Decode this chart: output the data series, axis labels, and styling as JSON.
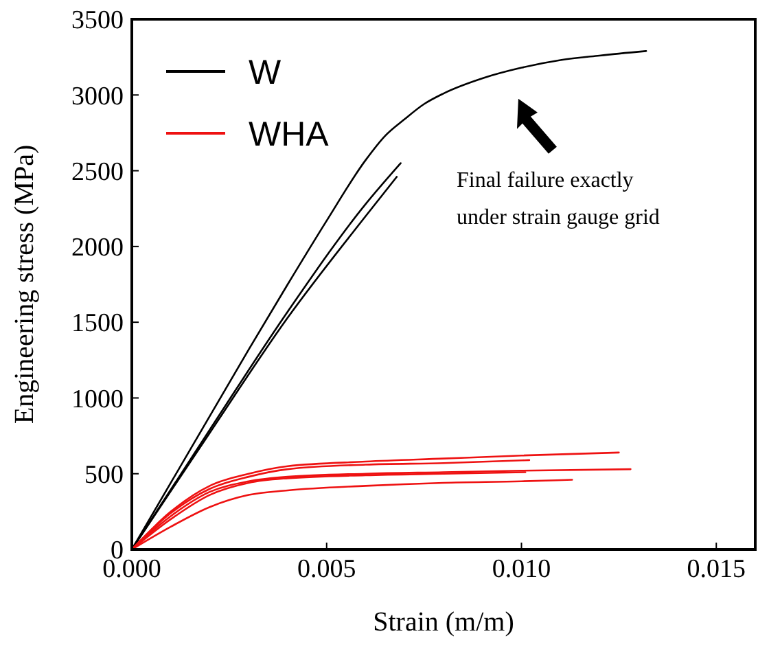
{
  "chart_data": {
    "type": "line",
    "xlabel": "Strain (m/m)",
    "ylabel": "Engineering stress (MPa)",
    "xlim": [
      0,
      0.016
    ],
    "ylim": [
      0,
      3500
    ],
    "xticks": [
      {
        "value": 0,
        "label": "0.000"
      },
      {
        "value": 0.005,
        "label": "0.005"
      },
      {
        "value": 0.01,
        "label": "0.010"
      },
      {
        "value": 0.015,
        "label": "0.015"
      }
    ],
    "yticks": [
      0,
      500,
      1000,
      1500,
      2000,
      2500,
      3000,
      3500
    ],
    "grid": false,
    "legend": "top left",
    "marker": "none",
    "line_style": "solid",
    "annotations": [
      "Final failure exactly under strain gauge grid"
    ],
    "series": [
      {
        "name": "W",
        "color": "#000000",
        "x": [
          0,
          0.001,
          0.002,
          0.003,
          0.004,
          0.005,
          0.006,
          0.0065,
          0.007,
          0.0075,
          0.008,
          0.009,
          0.01,
          0.011,
          0.012,
          0.0132
        ],
        "values": [
          0,
          440,
          880,
          1320,
          1750,
          2170,
          2570,
          2730,
          2840,
          2940,
          3010,
          3110,
          3180,
          3230,
          3260,
          3290
        ]
      },
      {
        "color": "#000000",
        "x": [
          0,
          0.002,
          0.004,
          0.006,
          0.0069
        ],
        "values": [
          0,
          790,
          1570,
          2280,
          2550
        ]
      },
      {
        "color": "#000000",
        "x": [
          0,
          0.002,
          0.004,
          0.006,
          0.0068
        ],
        "values": [
          0,
          770,
          1530,
          2200,
          2460
        ]
      },
      {
        "name": "WHA",
        "color": "#ee1111",
        "x": [
          0,
          0.001,
          0.002,
          0.003,
          0.004,
          0.006,
          0.008,
          0.01,
          0.0125
        ],
        "values": [
          0,
          250,
          420,
          500,
          550,
          580,
          600,
          620,
          640
        ]
      },
      {
        "color": "#ee1111",
        "x": [
          0,
          0.001,
          0.002,
          0.003,
          0.004,
          0.006,
          0.008,
          0.0102
        ],
        "values": [
          0,
          240,
          400,
          480,
          530,
          560,
          570,
          590
        ]
      },
      {
        "color": "#ee1111",
        "x": [
          0,
          0.001,
          0.002,
          0.003,
          0.004,
          0.006,
          0.008,
          0.01,
          0.0128
        ],
        "values": [
          0,
          220,
          380,
          450,
          480,
          500,
          510,
          520,
          530
        ]
      },
      {
        "color": "#ee1111",
        "x": [
          0,
          0.001,
          0.002,
          0.003,
          0.004,
          0.006,
          0.008,
          0.0101
        ],
        "values": [
          0,
          200,
          360,
          440,
          470,
          490,
          500,
          510
        ]
      },
      {
        "color": "#ee1111",
        "x": [
          0,
          0.001,
          0.002,
          0.003,
          0.004,
          0.006,
          0.008,
          0.01,
          0.0113
        ],
        "values": [
          0,
          150,
          280,
          360,
          390,
          420,
          440,
          450,
          460
        ]
      }
    ]
  }
}
